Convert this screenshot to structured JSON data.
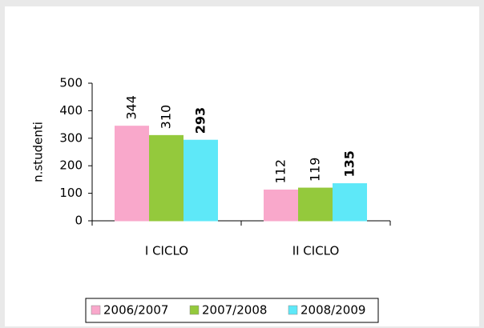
{
  "chart_data": {
    "type": "bar",
    "y_label": "n.studenti",
    "categories": [
      "I CICLO",
      "II CICLO"
    ],
    "series": [
      {
        "name": "2006/2007",
        "color": "#f9a8cb",
        "values": [
          344,
          112
        ]
      },
      {
        "name": "2007/2008",
        "color": "#94c93c",
        "values": [
          310,
          119
        ]
      },
      {
        "name": "2008/2009",
        "color": "#5ee8f8",
        "values": [
          293,
          135
        ]
      }
    ],
    "ylim": [
      0,
      500
    ],
    "yticks": [
      0,
      100,
      200,
      300,
      400,
      500
    ]
  }
}
